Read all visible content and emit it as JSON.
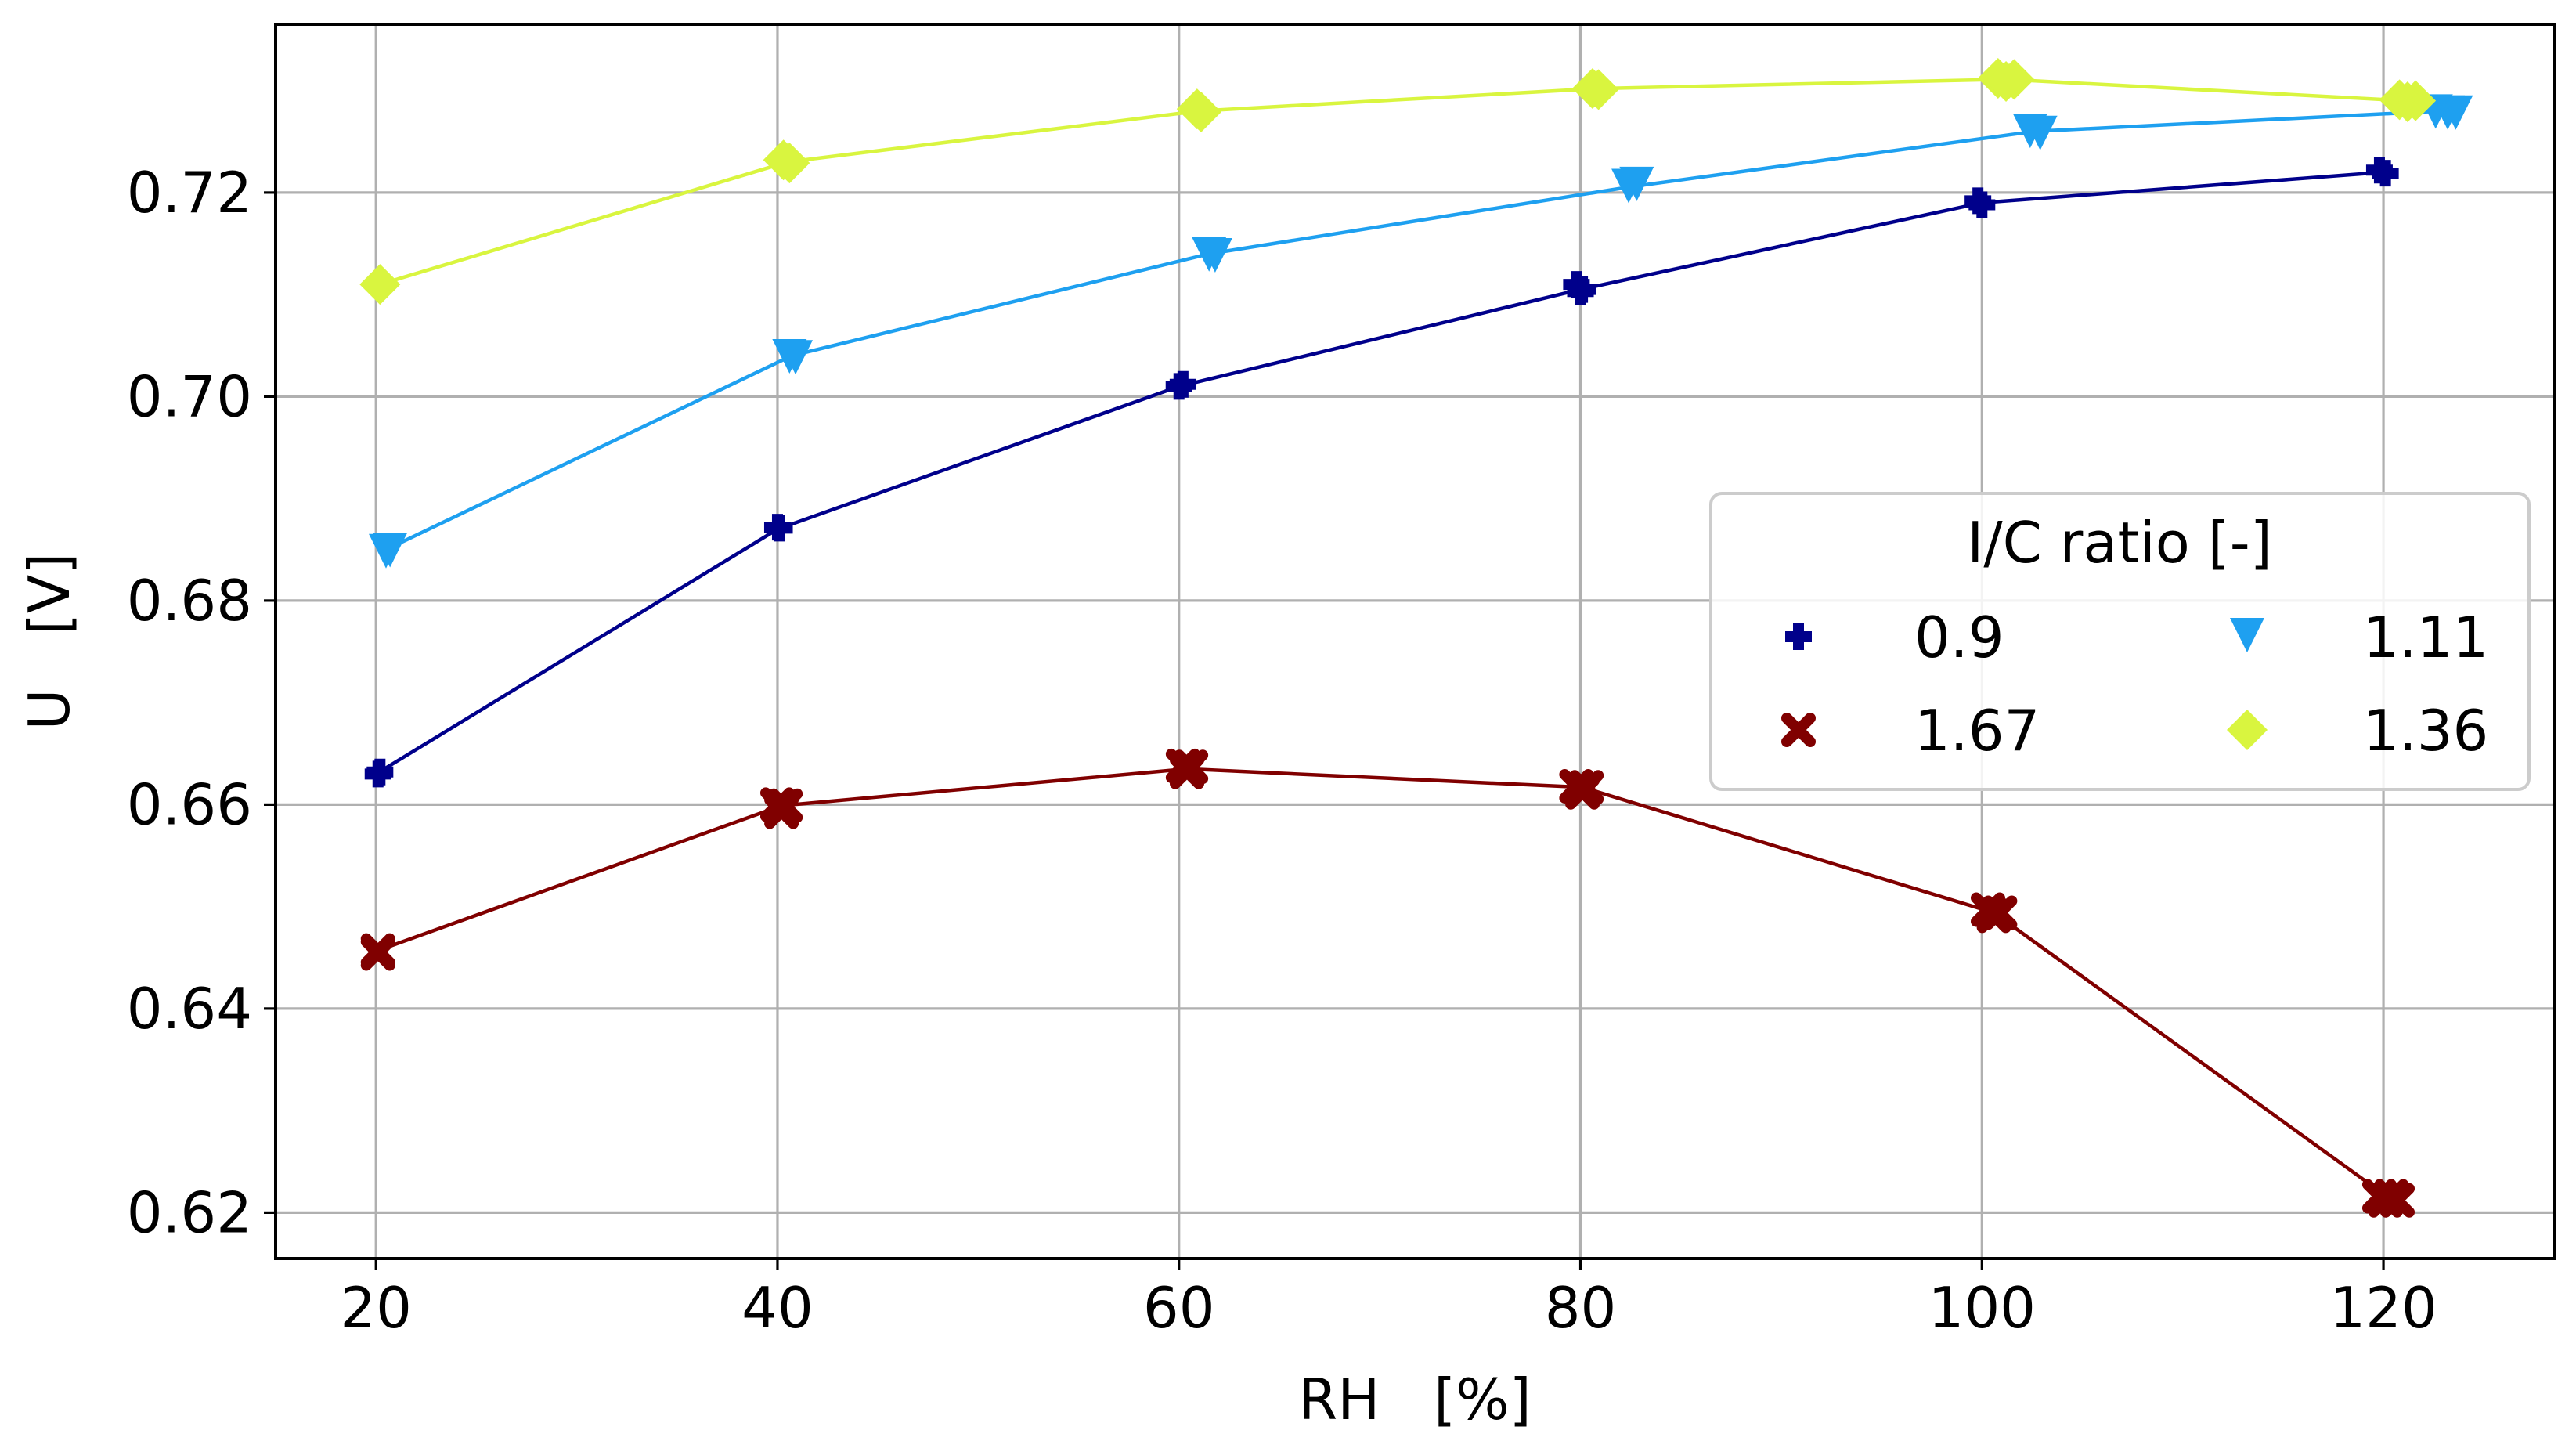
{
  "chart_data": {
    "type": "line",
    "title": "",
    "xlabel": "RH   [%]",
    "ylabel": "U   [V]",
    "xlim": [
      15,
      128.5
    ],
    "ylim": [
      0.6155,
      0.7365
    ],
    "xticks": [
      20,
      40,
      60,
      80,
      100,
      120
    ],
    "yticks": [
      0.62,
      0.64,
      0.66,
      0.68,
      0.7,
      0.72
    ],
    "ytick_labels": [
      "0.62",
      "0.64",
      "0.66",
      "0.68",
      "0.70",
      "0.72"
    ],
    "grid": true,
    "legend": {
      "title": "I/C ratio [-]",
      "position": "center-right",
      "columns": 2,
      "order": [
        0,
        2,
        1,
        3
      ]
    },
    "series": [
      {
        "name": "0.9",
        "color": "#00008b",
        "marker": "plus",
        "x": [
          20,
          40,
          60,
          80,
          100,
          120
        ],
        "y": [
          0.663,
          0.687,
          0.701,
          0.7105,
          0.719,
          0.722
        ],
        "markers": [
          [
            20.1,
            0.663
          ],
          [
            20.2,
            0.6632
          ],
          [
            40,
            0.6872
          ],
          [
            40.1,
            0.6871
          ],
          [
            60,
            0.701
          ],
          [
            60.2,
            0.7012
          ],
          [
            79.8,
            0.711
          ],
          [
            80,
            0.7103
          ],
          [
            80.1,
            0.7105
          ],
          [
            99.8,
            0.7192
          ],
          [
            100,
            0.7188
          ],
          [
            119.8,
            0.7222
          ],
          [
            120.1,
            0.7219
          ]
        ]
      },
      {
        "name": "1.11",
        "color": "#1ea0f0",
        "marker": "triangle-down",
        "x": [
          20.5,
          40.7,
          61.5,
          82.6,
          102.6,
          122.9
        ],
        "y": [
          0.685,
          0.704,
          0.714,
          0.7206,
          0.726,
          0.728
        ],
        "markers": [
          [
            20.5,
            0.685
          ],
          [
            20.7,
            0.6851
          ],
          [
            40.6,
            0.7041
          ],
          [
            40.9,
            0.704
          ],
          [
            61.5,
            0.7141
          ],
          [
            61.8,
            0.714
          ],
          [
            82.4,
            0.7208
          ],
          [
            82.8,
            0.721
          ],
          [
            102.4,
            0.7262
          ],
          [
            102.9,
            0.726
          ],
          [
            122.6,
            0.7281
          ],
          [
            123.2,
            0.728
          ],
          [
            123.6,
            0.728
          ]
        ]
      },
      {
        "name": "1.67",
        "color": "#800000",
        "marker": "x",
        "x": [
          20.1,
          40.2,
          60.4,
          80.1,
          100.6,
          120.3
        ],
        "y": [
          0.6457,
          0.6599,
          0.6635,
          0.6617,
          0.6494,
          0.6214
        ],
        "markers": [
          [
            20.1,
            0.6457
          ],
          [
            20.1,
            0.6454
          ],
          [
            40,
            0.66
          ],
          [
            40.2,
            0.6593
          ],
          [
            40.4,
            0.6599
          ],
          [
            60.2,
            0.6638
          ],
          [
            60.4,
            0.6632
          ],
          [
            60.6,
            0.6637
          ],
          [
            79.8,
            0.6618
          ],
          [
            80.1,
            0.6612
          ],
          [
            80.3,
            0.6617
          ],
          [
            100.3,
            0.6497
          ],
          [
            100.6,
            0.6491
          ],
          [
            100.9,
            0.6494
          ],
          [
            119.8,
            0.6216
          ],
          [
            120.1,
            0.6212
          ],
          [
            120.4,
            0.6216
          ],
          [
            120.7,
            0.6212
          ]
        ]
      },
      {
        "name": "1.36",
        "color": "#d9f53f",
        "marker": "diamond",
        "x": [
          20.2,
          40.5,
          61,
          80.8,
          101.2,
          121.2
        ],
        "y": [
          0.711,
          0.723,
          0.728,
          0.7302,
          0.7311,
          0.729
        ],
        "markers": [
          [
            20.2,
            0.711
          ],
          [
            40.3,
            0.7232
          ],
          [
            40.6,
            0.7229
          ],
          [
            60.9,
            0.7282
          ],
          [
            61.1,
            0.7279
          ],
          [
            80.6,
            0.7302
          ],
          [
            80.9,
            0.7301
          ],
          [
            100.8,
            0.7312
          ],
          [
            101.2,
            0.7309
          ],
          [
            101.6,
            0.7311
          ],
          [
            120.8,
            0.7291
          ],
          [
            121.2,
            0.7289
          ],
          [
            121.6,
            0.729
          ]
        ]
      }
    ]
  }
}
